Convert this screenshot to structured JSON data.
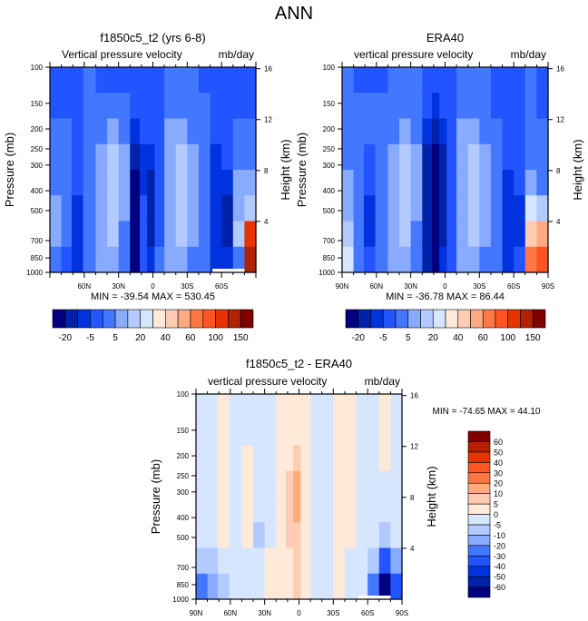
{
  "page_title": "ANN",
  "chart_data": [
    {
      "type": "heatmap",
      "id": "model",
      "title": "f1850c5_t2 (yrs 6-8)",
      "left_label": "Vertical pressure velocity",
      "right_label": "mb/day",
      "ylabel": "Pressure (mb)",
      "ylabel_right": "Height (km)",
      "yticks": [
        "100",
        "150",
        "200",
        "250",
        "300",
        "400",
        "500",
        "700",
        "850",
        "1000"
      ],
      "ytick_values": [
        100,
        150,
        200,
        250,
        300,
        400,
        500,
        700,
        850,
        1000
      ],
      "ylim": [
        1000,
        100
      ],
      "yscale": "log",
      "height_ticks": [
        "16",
        "12",
        "8",
        "4"
      ],
      "height_tick_values": [
        16,
        12,
        8,
        4
      ],
      "xticks": [
        "",
        "60N",
        "30N",
        "0",
        "30S",
        "60S",
        ""
      ],
      "xtick_values": [
        90,
        60,
        30,
        0,
        -30,
        -60,
        -90
      ],
      "xlim": [
        90,
        -90
      ],
      "stats": "MIN = -39.54  MAX = 530.45",
      "min": -39.54,
      "max": 530.45,
      "colorbar": {
        "orientation": "horizontal",
        "labels": [
          "-20",
          "-5",
          "5",
          "20",
          "40",
          "60",
          "100",
          "150"
        ],
        "colors": [
          "#000080",
          "#0022aa",
          "#0033dd",
          "#2255ff",
          "#4477ff",
          "#88aaff",
          "#b3caff",
          "#d6e6ff",
          "#ffe9d8",
          "#ffccb3",
          "#ffaa80",
          "#ff7744",
          "#ff5522",
          "#e63300",
          "#b32200",
          "#800000"
        ]
      },
      "columns": [
        {
          "lat": 85,
          "levels": [
            3,
            3,
            4,
            4,
            4,
            5,
            5,
            4
          ]
        },
        {
          "lat": 75,
          "levels": [
            3,
            3,
            4,
            4,
            4,
            4,
            4,
            3
          ]
        },
        {
          "lat": 67,
          "levels": [
            3,
            3,
            3,
            3,
            3,
            2,
            2,
            2
          ]
        },
        {
          "lat": 55,
          "levels": [
            4,
            4,
            4,
            4,
            4,
            4,
            4,
            4
          ]
        },
        {
          "lat": 45,
          "levels": [
            3,
            4,
            4,
            5,
            5,
            5,
            5,
            5
          ]
        },
        {
          "lat": 35,
          "levels": [
            3,
            4,
            5,
            6,
            6,
            6,
            6,
            5
          ]
        },
        {
          "lat": 25,
          "levels": [
            3,
            4,
            4,
            5,
            5,
            5,
            4,
            4
          ]
        },
        {
          "lat": 15,
          "levels": [
            3,
            3,
            2,
            1,
            0,
            0,
            0,
            0
          ]
        },
        {
          "lat": 8,
          "levels": [
            3,
            3,
            3,
            2,
            2,
            3,
            3,
            3
          ]
        },
        {
          "lat": 2,
          "levels": [
            3,
            3,
            3,
            2,
            1,
            1,
            1,
            2
          ]
        },
        {
          "lat": -5,
          "levels": [
            3,
            3,
            3,
            3,
            3,
            3,
            3,
            4
          ]
        },
        {
          "lat": -15,
          "levels": [
            4,
            4,
            5,
            5,
            5,
            5,
            5,
            5
          ]
        },
        {
          "lat": -25,
          "levels": [
            4,
            4,
            5,
            6,
            6,
            6,
            6,
            5
          ]
        },
        {
          "lat": -35,
          "levels": [
            4,
            4,
            4,
            5,
            5,
            5,
            5,
            4
          ]
        },
        {
          "lat": -45,
          "levels": [
            3,
            4,
            4,
            4,
            4,
            4,
            4,
            4
          ]
        },
        {
          "lat": -55,
          "levels": [
            3,
            3,
            3,
            2,
            2,
            2,
            2,
            2
          ]
        },
        {
          "lat": -65,
          "levels": [
            3,
            3,
            3,
            3,
            2,
            1,
            1,
            2
          ]
        },
        {
          "lat": -75,
          "levels": [
            3,
            3,
            4,
            4,
            5,
            5,
            6,
            4
          ]
        },
        {
          "lat": -85,
          "levels": [
            3,
            3,
            4,
            4,
            5,
            6,
            13,
            14
          ]
        }
      ]
    },
    {
      "type": "heatmap",
      "id": "obs",
      "title": "ERA40",
      "left_label": "vertical pressure velocity",
      "right_label": "mb/day",
      "ylabel": "Pressure (mb)",
      "ylabel_right": "Height (km)",
      "yticks": [
        "100",
        "150",
        "200",
        "250",
        "300",
        "400",
        "500",
        "700",
        "850",
        "1000"
      ],
      "ytick_values": [
        100,
        150,
        200,
        250,
        300,
        400,
        500,
        700,
        850,
        1000
      ],
      "ylim": [
        1000,
        100
      ],
      "yscale": "log",
      "height_ticks": [
        "16",
        "12",
        "8",
        "4"
      ],
      "height_tick_values": [
        16,
        12,
        8,
        4
      ],
      "xticks": [
        "90N",
        "60N",
        "30N",
        "0",
        "30S",
        "60S",
        "90S"
      ],
      "xtick_values": [
        90,
        60,
        30,
        0,
        -30,
        -60,
        -90
      ],
      "xlim": [
        90,
        -90
      ],
      "stats": "MIN = -36.78  MAX =  86.44",
      "min": -36.78,
      "max": 86.44,
      "colorbar": {
        "orientation": "horizontal",
        "labels": [
          "-20",
          "-5",
          "5",
          "20",
          "40",
          "60",
          "100",
          "150"
        ],
        "colors": [
          "#000080",
          "#0022aa",
          "#0033dd",
          "#2255ff",
          "#4477ff",
          "#88aaff",
          "#b3caff",
          "#d6e6ff",
          "#ffe9d8",
          "#ffccb3",
          "#ffaa80",
          "#ff7744",
          "#ff5522",
          "#e63300",
          "#b32200",
          "#800000"
        ]
      },
      "columns": [
        {
          "lat": 85,
          "levels": [
            4,
            4,
            4,
            4,
            5,
            5,
            6,
            7
          ]
        },
        {
          "lat": 75,
          "levels": [
            3,
            4,
            4,
            4,
            4,
            4,
            4,
            4
          ]
        },
        {
          "lat": 67,
          "levels": [
            3,
            4,
            4,
            3,
            3,
            2,
            2,
            3
          ]
        },
        {
          "lat": 55,
          "levels": [
            3,
            4,
            4,
            4,
            4,
            4,
            4,
            4
          ]
        },
        {
          "lat": 45,
          "levels": [
            4,
            4,
            4,
            5,
            5,
            5,
            5,
            5
          ]
        },
        {
          "lat": 35,
          "levels": [
            4,
            4,
            5,
            6,
            6,
            6,
            6,
            5
          ]
        },
        {
          "lat": 25,
          "levels": [
            4,
            4,
            4,
            5,
            5,
            5,
            4,
            4
          ]
        },
        {
          "lat": 15,
          "levels": [
            3,
            3,
            2,
            1,
            1,
            1,
            1,
            1
          ]
        },
        {
          "lat": 8,
          "levels": [
            3,
            2,
            1,
            0,
            0,
            0,
            0,
            0
          ]
        },
        {
          "lat": 2,
          "levels": [
            3,
            3,
            2,
            1,
            1,
            1,
            1,
            2
          ]
        },
        {
          "lat": -5,
          "levels": [
            3,
            3,
            3,
            3,
            3,
            3,
            3,
            3
          ]
        },
        {
          "lat": -15,
          "levels": [
            4,
            4,
            5,
            5,
            5,
            5,
            5,
            5
          ]
        },
        {
          "lat": -25,
          "levels": [
            4,
            4,
            5,
            6,
            6,
            6,
            6,
            5
          ]
        },
        {
          "lat": -35,
          "levels": [
            4,
            4,
            4,
            5,
            5,
            5,
            5,
            4
          ]
        },
        {
          "lat": -45,
          "levels": [
            3,
            3,
            4,
            4,
            4,
            4,
            4,
            4
          ]
        },
        {
          "lat": -55,
          "levels": [
            3,
            3,
            3,
            3,
            2,
            2,
            2,
            2
          ]
        },
        {
          "lat": -65,
          "levels": [
            3,
            3,
            3,
            3,
            3,
            2,
            2,
            3
          ]
        },
        {
          "lat": -75,
          "levels": [
            4,
            4,
            4,
            4,
            5,
            7,
            9,
            11
          ]
        },
        {
          "lat": -85,
          "levels": [
            3,
            3,
            4,
            4,
            4,
            6,
            10,
            12
          ]
        }
      ]
    },
    {
      "type": "heatmap",
      "id": "diff",
      "title": "f1850c5_t2 - ERA40",
      "left_label": "vertical pressure velocity",
      "right_label": "mb/day",
      "ylabel": "Pressure (mb)",
      "ylabel_right": "Height (km)",
      "yticks": [
        "100",
        "150",
        "200",
        "250",
        "300",
        "400",
        "500",
        "700",
        "850",
        "1000"
      ],
      "ytick_values": [
        100,
        150,
        200,
        250,
        300,
        400,
        500,
        700,
        850,
        1000
      ],
      "ylim": [
        1000,
        100
      ],
      "yscale": "log",
      "height_ticks": [
        "16",
        "12",
        "8",
        "4"
      ],
      "height_tick_values": [
        16,
        12,
        8,
        4
      ],
      "xticks": [
        "90N",
        "60N",
        "30N",
        "0",
        "30S",
        "60S",
        "90S"
      ],
      "xtick_values": [
        90,
        60,
        30,
        0,
        -30,
        -60,
        -90
      ],
      "xlim": [
        90,
        -90
      ],
      "stats": "MIN = -74.65  MAX =  44.10",
      "min": -74.65,
      "max": 44.1,
      "colorbar": {
        "orientation": "vertical",
        "labels": [
          "-60",
          "-50",
          "-40",
          "-30",
          "-20",
          "-10",
          "-5",
          "0",
          "5",
          "10",
          "20",
          "30",
          "40",
          "50",
          "60"
        ],
        "colors": [
          "#000080",
          "#0022aa",
          "#0033dd",
          "#2255ff",
          "#4477ff",
          "#88aaff",
          "#b3caff",
          "#d6e6ff",
          "#ffe9d8",
          "#ffccb3",
          "#ffaa80",
          "#ff7744",
          "#ff5522",
          "#e63300",
          "#b32200",
          "#800000"
        ]
      },
      "columns": [
        {
          "lat": 85,
          "levels": [
            7,
            7,
            7,
            7,
            7,
            7,
            6,
            4
          ]
        },
        {
          "lat": 75,
          "levels": [
            7,
            7,
            7,
            7,
            7,
            7,
            6,
            5
          ]
        },
        {
          "lat": 67,
          "levels": [
            8,
            8,
            8,
            8,
            8,
            8,
            7,
            6
          ]
        },
        {
          "lat": 55,
          "levels": [
            7,
            7,
            7,
            7,
            7,
            7,
            7,
            7
          ]
        },
        {
          "lat": 45,
          "levels": [
            7,
            7,
            8,
            8,
            8,
            8,
            7,
            7
          ]
        },
        {
          "lat": 35,
          "levels": [
            7,
            7,
            7,
            7,
            7,
            6,
            7,
            7
          ]
        },
        {
          "lat": 25,
          "levels": [
            7,
            7,
            7,
            7,
            7,
            7,
            8,
            8
          ]
        },
        {
          "lat": 15,
          "levels": [
            8,
            8,
            8,
            8,
            8,
            8,
            8,
            8
          ]
        },
        {
          "lat": 8,
          "levels": [
            8,
            8,
            8,
            9,
            9,
            9,
            8,
            8
          ]
        },
        {
          "lat": 2,
          "levels": [
            8,
            8,
            9,
            10,
            10,
            9,
            9,
            9
          ]
        },
        {
          "lat": -5,
          "levels": [
            8,
            8,
            8,
            8,
            8,
            8,
            8,
            8
          ]
        },
        {
          "lat": -15,
          "levels": [
            7,
            7,
            7,
            7,
            7,
            7,
            7,
            7
          ]
        },
        {
          "lat": -25,
          "levels": [
            7,
            7,
            7,
            7,
            7,
            7,
            7,
            7
          ]
        },
        {
          "lat": -35,
          "levels": [
            8,
            8,
            8,
            8,
            8,
            8,
            8,
            8
          ]
        },
        {
          "lat": -45,
          "levels": [
            8,
            8,
            8,
            8,
            8,
            8,
            7,
            7
          ]
        },
        {
          "lat": -55,
          "levels": [
            7,
            7,
            7,
            7,
            7,
            7,
            7,
            7
          ]
        },
        {
          "lat": -65,
          "levels": [
            7,
            7,
            7,
            7,
            7,
            7,
            6,
            4
          ]
        },
        {
          "lat": -75,
          "levels": [
            8,
            8,
            8,
            7,
            7,
            6,
            3,
            0
          ]
        },
        {
          "lat": -85,
          "levels": [
            7,
            7,
            7,
            7,
            7,
            7,
            5,
            3
          ]
        }
      ]
    }
  ]
}
